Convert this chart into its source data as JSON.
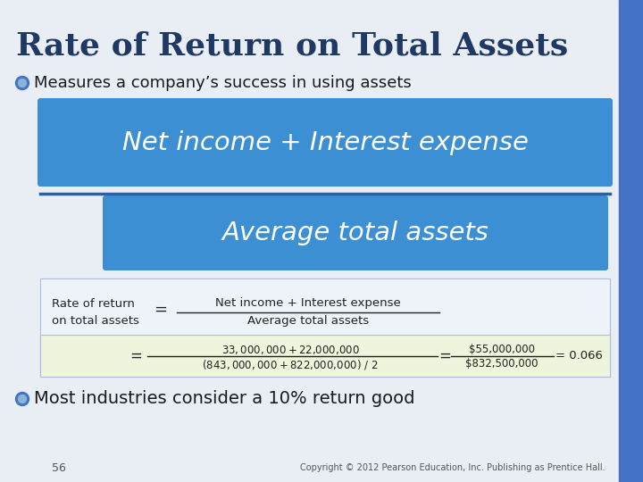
{
  "title": "Rate of Return on Total Assets",
  "title_color": "#1F3864",
  "slide_bg": "#E8EEF4",
  "right_bar_color": "#4472C4",
  "bullet1": "Measures a company’s success in using assets",
  "bullet2": "Most industries consider a 10% return good",
  "box1_text": "Net income + Interest expense",
  "box2_text": "Average total assets",
  "box_color": "#3D8FD4",
  "box_text_color": "#FFFFFF",
  "formula_bg": "#EEF3FA",
  "formula_green_bg": "#EEF5DC",
  "formula_left": "Rate of return\non total assets",
  "formula_eq1": "=",
  "formula_num": "Net income + Interest expense",
  "formula_den": "Average total assets",
  "calc_eq": "=",
  "calc_num": "$33,000,000 + $22,000,000",
  "calc_den": "($843,000,000 + $822,000,000) / 2",
  "calc_eq2": "=",
  "calc_num2": "$55,000,000",
  "calc_den2": "$832,500,000",
  "calc_result": "= 0.066",
  "page_num": "56",
  "copyright": "Copyright © 2012 Pearson Education, Inc. Publishing as Prentice Hall."
}
